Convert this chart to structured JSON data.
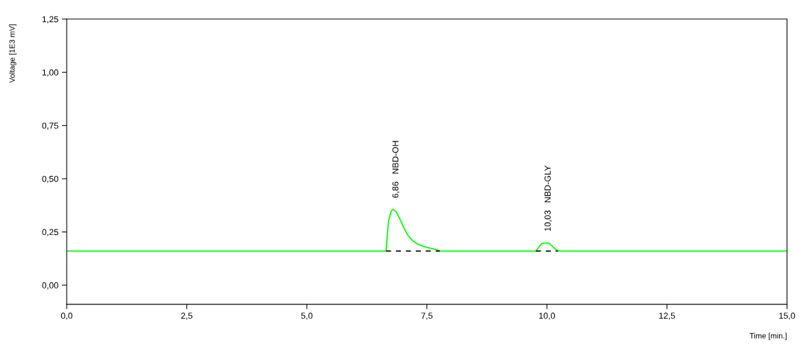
{
  "chart_data": {
    "type": "line",
    "xlabel": "Time [min.]",
    "ylabel": "Voltage [1E3 mV]",
    "xlim": [
      0,
      15
    ],
    "ylim": [
      -0.09,
      1.25
    ],
    "xticks": [
      {
        "value": 0,
        "label": "0,0"
      },
      {
        "value": 2.5,
        "label": "2,5"
      },
      {
        "value": 5,
        "label": "5,0"
      },
      {
        "value": 7.5,
        "label": "7,5"
      },
      {
        "value": 10,
        "label": "10,0"
      },
      {
        "value": 12.5,
        "label": "12,5"
      },
      {
        "value": 15,
        "label": "15,0"
      }
    ],
    "yticks": [
      {
        "value": 0,
        "label": "0,00"
      },
      {
        "value": 0.25,
        "label": "0,25"
      },
      {
        "value": 0.5,
        "label": "0,50"
      },
      {
        "value": 0.75,
        "label": "0,75"
      },
      {
        "value": 1,
        "label": "1,00"
      },
      {
        "value": 1.25,
        "label": "1,25"
      }
    ],
    "grid": false,
    "marker": "none",
    "series": [
      {
        "color": "#00ff00",
        "line_style": "solid",
        "x": [
          0,
          6.65,
          6.7,
          6.76,
          6.8,
          6.86,
          6.94,
          7.02,
          7.1,
          7.2,
          7.29,
          7.4,
          7.49,
          7.6,
          7.72,
          7.77,
          9.77,
          9.82,
          9.89,
          9.95,
          10.04,
          10.1,
          10.16,
          10.23,
          10.28,
          15
        ],
        "values": [
          0.16,
          0.16,
          0.3,
          0.35,
          0.355,
          0.345,
          0.31,
          0.27,
          0.235,
          0.21,
          0.195,
          0.185,
          0.178,
          0.172,
          0.165,
          0.16,
          0.16,
          0.175,
          0.195,
          0.198,
          0.198,
          0.185,
          0.172,
          0.162,
          0.16,
          0.16
        ]
      },
      {
        "color": "#000000",
        "line_style": "dashed",
        "x": [
          6.65,
          7.77
        ],
        "values": [
          0.16,
          0.16
        ]
      },
      {
        "color": "#000000",
        "line_style": "dashed",
        "x": [
          9.77,
          10.23
        ],
        "values": [
          0.16,
          0.16
        ]
      }
    ],
    "annotations": [
      {
        "text": "6,86   NBD-OH",
        "x": 6.86,
        "y": 0.355
      },
      {
        "text": "10,03   NBD-GLY",
        "x": 10.03,
        "y": 0.198
      }
    ]
  }
}
